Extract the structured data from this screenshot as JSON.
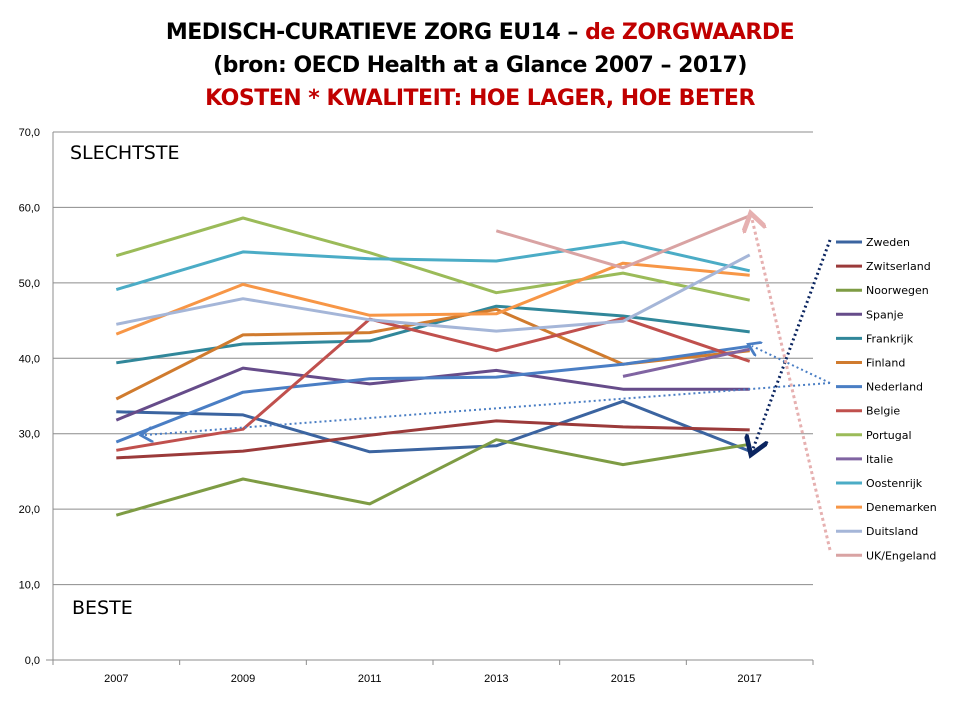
{
  "title": {
    "line1_black": "MEDISCH-CURATIEVE ZORG EU14 – ",
    "line1_red": "de ZORGWAARDE",
    "line2": "(bron: OECD Health at a Glance 2007 – 2017)",
    "line3": "KOSTEN * KWALITEIT: HOE LAGER, HOE BETER"
  },
  "annotations": {
    "top": "SLECHTSTE",
    "bottom": "BESTE"
  },
  "chart_data": {
    "type": "line",
    "title": "MEDISCH-CURATIEVE ZORG EU14 – de ZORGWAARDE",
    "categories": [
      "2007",
      "2009",
      "2011",
      "2013",
      "2015",
      "2017"
    ],
    "ylim": [
      0,
      70
    ],
    "yticks": [
      "0,0",
      "10,0",
      "20,0",
      "30,0",
      "40,0",
      "50,0",
      "60,0",
      "70,0"
    ],
    "grid": true,
    "legend": "right",
    "series": [
      {
        "name": "Zweden",
        "color": "#3B64A0",
        "values": [
          32.9,
          32.5,
          27.6,
          28.4,
          34.3,
          27.7
        ]
      },
      {
        "name": "Zwitserland",
        "color": "#9B3A3A",
        "values": [
          26.8,
          27.7,
          29.8,
          31.7,
          30.9,
          30.5
        ]
      },
      {
        "name": "Noorwegen",
        "color": "#7E9C44",
        "values": [
          19.2,
          24.0,
          20.7,
          29.2,
          25.9,
          28.6
        ]
      },
      {
        "name": "Spanje",
        "color": "#664C8A",
        "values": [
          31.8,
          38.7,
          36.6,
          38.4,
          35.9,
          35.9
        ]
      },
      {
        "name": "Frankrijk",
        "color": "#31879A",
        "values": [
          39.4,
          41.9,
          42.3,
          46.9,
          45.6,
          43.5
        ]
      },
      {
        "name": "Finland",
        "color": "#D07B2E",
        "values": [
          34.6,
          43.1,
          43.4,
          46.5,
          39.2,
          41.0
        ]
      },
      {
        "name": "Nederland",
        "color": "#4A7EC4",
        "values": [
          28.9,
          35.5,
          37.3,
          37.5,
          39.2,
          41.6
        ]
      },
      {
        "name": "Belgie",
        "color": "#C0504D",
        "values": [
          27.8,
          30.6,
          45.2,
          41.0,
          45.3,
          39.6
        ]
      },
      {
        "name": "Portugal",
        "color": "#9BBB59",
        "values": [
          53.6,
          58.6,
          54.0,
          48.7,
          51.3,
          47.7
        ]
      },
      {
        "name": "Italie",
        "color": "#8064A2",
        "values": [
          null,
          null,
          null,
          null,
          37.6,
          41.2
        ]
      },
      {
        "name": "Oostenrijk",
        "color": "#4BACC6",
        "values": [
          49.1,
          54.1,
          53.2,
          52.9,
          55.4,
          51.6
        ]
      },
      {
        "name": "Denemarken",
        "color": "#F79646",
        "values": [
          43.2,
          49.8,
          45.7,
          45.9,
          52.6,
          51.0
        ]
      },
      {
        "name": "Duitsland",
        "color": "#A5B6D8",
        "values": [
          44.5,
          47.9,
          45.1,
          43.6,
          44.9,
          53.7
        ]
      },
      {
        "name": "UK/Engeland",
        "color": "#D9A3A3",
        "values": [
          null,
          null,
          null,
          56.9,
          52.0,
          58.9
        ]
      }
    ]
  }
}
